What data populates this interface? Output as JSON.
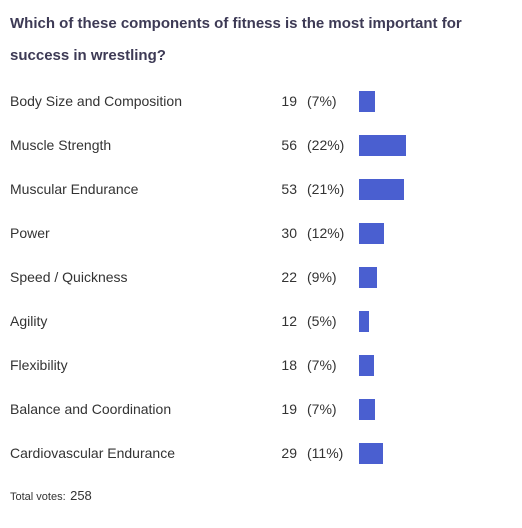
{
  "chart_data": {
    "type": "bar",
    "title": "Which of these components of fitness is the most important for success in wrestling?",
    "categories": [
      "Body Size and Composition",
      "Muscle Strength",
      "Muscular Endurance",
      "Power",
      "Speed / Quickness",
      "Agility",
      "Flexibility",
      "Balance and Coordination",
      "Cardiovascular Endurance"
    ],
    "values": [
      19,
      56,
      53,
      30,
      22,
      12,
      18,
      19,
      29
    ],
    "percent_labels": [
      "(7%)",
      "(22%)",
      "(21%)",
      "(12%)",
      "(9%)",
      "(5%)",
      "(7%)",
      "(7%)",
      "(11%)"
    ],
    "color": "#4a5fd0",
    "total_votes_label": "Total votes:",
    "total_votes": 258
  }
}
